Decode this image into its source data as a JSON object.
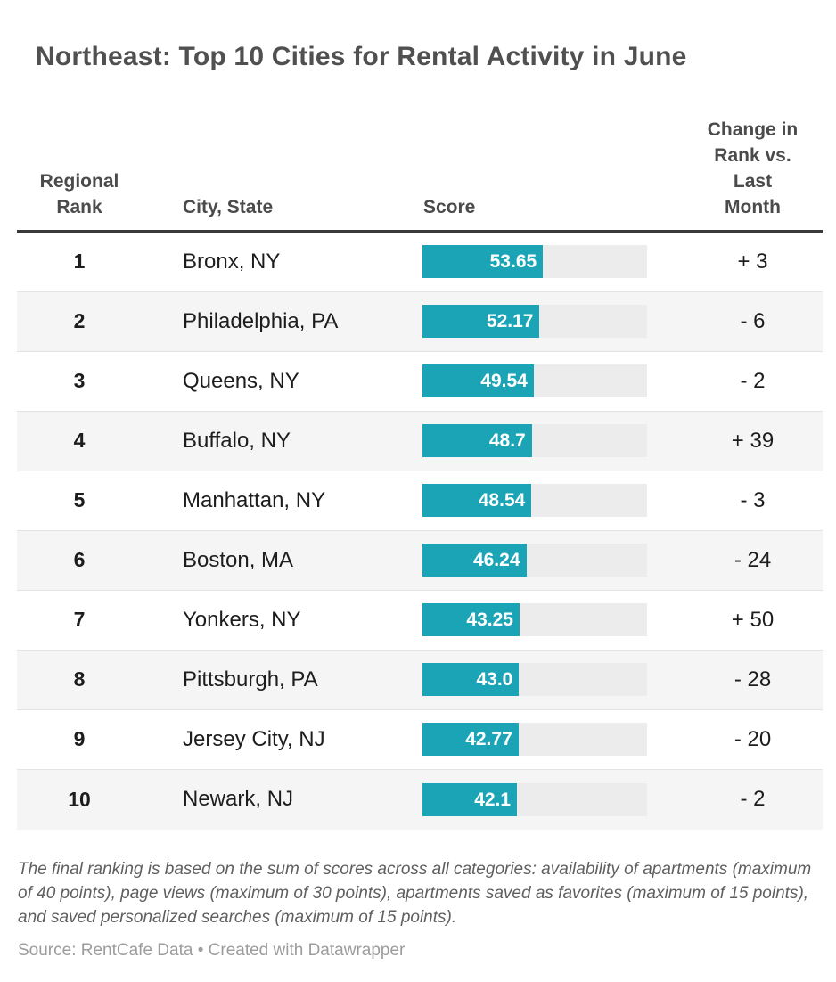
{
  "title": "Northeast: Top 10 Cities for Rental Activity in June",
  "table": {
    "headers": {
      "rank": "Regional Rank",
      "city": "City, State",
      "score": "Score",
      "change": "Change in Rank vs. Last Month"
    },
    "rows": [
      {
        "rank": "1",
        "city": "Bronx, NY",
        "score_label": "53.65",
        "score_value": 53.65,
        "change": "+ 3"
      },
      {
        "rank": "2",
        "city": "Philadelphia, PA",
        "score_label": "52.17",
        "score_value": 52.17,
        "change": "- 6"
      },
      {
        "rank": "3",
        "city": "Queens, NY",
        "score_label": "49.54",
        "score_value": 49.54,
        "change": "- 2"
      },
      {
        "rank": "4",
        "city": "Buffalo, NY",
        "score_label": "48.7",
        "score_value": 48.7,
        "change": "+ 39"
      },
      {
        "rank": "5",
        "city": "Manhattan, NY",
        "score_label": "48.54",
        "score_value": 48.54,
        "change": "- 3"
      },
      {
        "rank": "6",
        "city": "Boston, MA",
        "score_label": "46.24",
        "score_value": 46.24,
        "change": "- 24"
      },
      {
        "rank": "7",
        "city": "Yonkers, NY",
        "score_label": "43.25",
        "score_value": 43.25,
        "change": "+ 50"
      },
      {
        "rank": "8",
        "city": "Pittsburgh, PA",
        "score_label": "43.0",
        "score_value": 43.0,
        "change": "- 28"
      },
      {
        "rank": "9",
        "city": "Jersey City, NJ",
        "score_label": "42.77",
        "score_value": 42.77,
        "change": "- 20"
      },
      {
        "rank": "10",
        "city": "Newark, NJ",
        "score_label": "42.1",
        "score_value": 42.1,
        "change": "- 2"
      }
    ]
  },
  "notes": "The final ranking is based on the sum of scores across all categories: availability of apartments (maximum of 40 points), page views (maximum of 30 points), apartments saved as favorites (maximum of 15 points), and saved personalized searches (maximum of 15 points).",
  "source": "Source: RentCafe Data • Created with Datawrapper",
  "colors": {
    "bar_fill": "#1ba4b6",
    "bar_track": "#ececec",
    "row_alt_background": "#f5f5f5",
    "header_rule": "#3a3a3a",
    "bar_label_text": "#ffffff",
    "title_text": "#505050",
    "body_text": "#1d1d1d"
  },
  "chart_data": {
    "type": "bar",
    "title": "Northeast: Top 10 Cities for Rental Activity in June",
    "categories": [
      "Bronx, NY",
      "Philadelphia, PA",
      "Queens, NY",
      "Buffalo, NY",
      "Manhattan, NY",
      "Boston, MA",
      "Yonkers, NY",
      "Pittsburgh, PA",
      "Jersey City, NJ",
      "Newark, NJ"
    ],
    "series": [
      {
        "name": "Score",
        "values": [
          53.65,
          52.17,
          49.54,
          48.7,
          48.54,
          46.24,
          43.25,
          43.0,
          42.77,
          42.1
        ]
      },
      {
        "name": "Change in Rank vs. Last Month",
        "values": [
          3,
          -6,
          -2,
          39,
          -3,
          -24,
          50,
          -28,
          -20,
          -2
        ]
      }
    ],
    "regional_ranks": [
      1,
      2,
      3,
      4,
      5,
      6,
      7,
      8,
      9,
      10
    ],
    "xlabel": "Score",
    "ylabel": "",
    "xlim": [
      0,
      100
    ],
    "grid": false,
    "legend_position": "none",
    "orientation": "horizontal",
    "notes": "The final ranking is based on the sum of scores across all categories: availability of apartments (maximum of 40 points), page views (maximum of 30 points), apartments saved as favorites (maximum of 15 points), and saved personalized searches (maximum of 15 points).",
    "source": "Source: RentCafe Data • Created with Datawrapper"
  }
}
